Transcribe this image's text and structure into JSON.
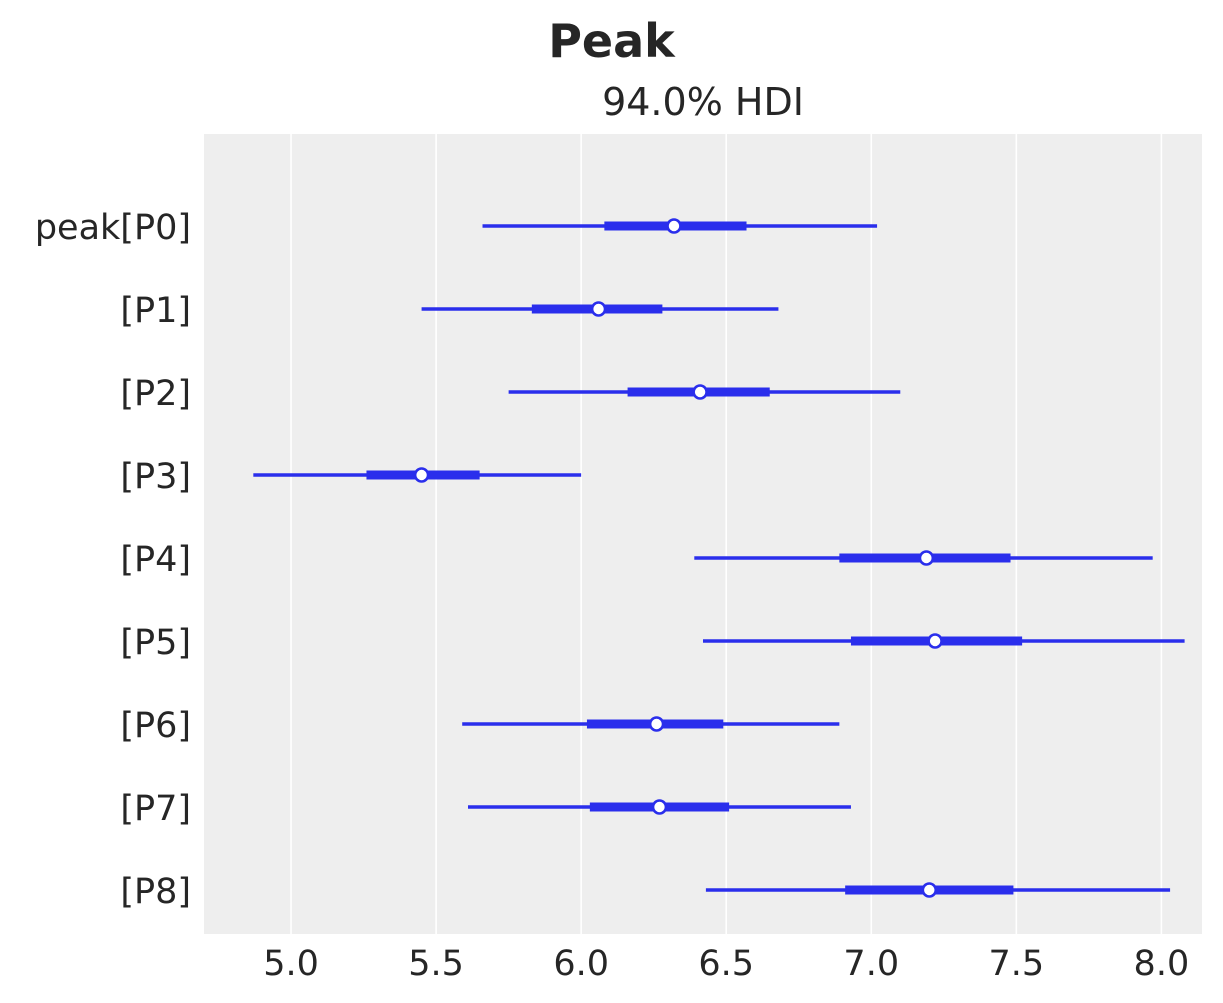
{
  "chart_data": {
    "type": "forest",
    "title": "Peak",
    "subtitle": "94.0% HDI",
    "xlim": [
      4.7,
      8.14
    ],
    "xticks": [
      "5.0",
      "5.5",
      "6.0",
      "6.5",
      "7.0",
      "7.5",
      "8.0"
    ],
    "grid": "vertical",
    "colors": {
      "series": "#2a2eec",
      "background": "#eeeeee",
      "grid": "#ffffff",
      "marker_fill": "#ffffff"
    },
    "rows": [
      {
        "label": "peak[P0]",
        "hdi_low": 5.66,
        "q_low": 6.08,
        "median": 6.32,
        "q_high": 6.57,
        "hdi_high": 7.02
      },
      {
        "label": "[P1]",
        "hdi_low": 5.45,
        "q_low": 5.83,
        "median": 6.06,
        "q_high": 6.28,
        "hdi_high": 6.68
      },
      {
        "label": "[P2]",
        "hdi_low": 5.75,
        "q_low": 6.16,
        "median": 6.41,
        "q_high": 6.65,
        "hdi_high": 7.1
      },
      {
        "label": "[P3]",
        "hdi_low": 4.87,
        "q_low": 5.26,
        "median": 5.45,
        "q_high": 5.65,
        "hdi_high": 6.0
      },
      {
        "label": "[P4]",
        "hdi_low": 6.39,
        "q_low": 6.89,
        "median": 7.19,
        "q_high": 7.48,
        "hdi_high": 7.97
      },
      {
        "label": "[P5]",
        "hdi_low": 6.42,
        "q_low": 6.93,
        "median": 7.22,
        "q_high": 7.52,
        "hdi_high": 8.08
      },
      {
        "label": "[P6]",
        "hdi_low": 5.59,
        "q_low": 6.02,
        "median": 6.26,
        "q_high": 6.49,
        "hdi_high": 6.89
      },
      {
        "label": "[P7]",
        "hdi_low": 5.61,
        "q_low": 6.03,
        "median": 6.27,
        "q_high": 6.51,
        "hdi_high": 6.93
      },
      {
        "label": "[P8]",
        "hdi_low": 6.43,
        "q_low": 6.91,
        "median": 7.2,
        "q_high": 7.49,
        "hdi_high": 8.03
      }
    ]
  }
}
